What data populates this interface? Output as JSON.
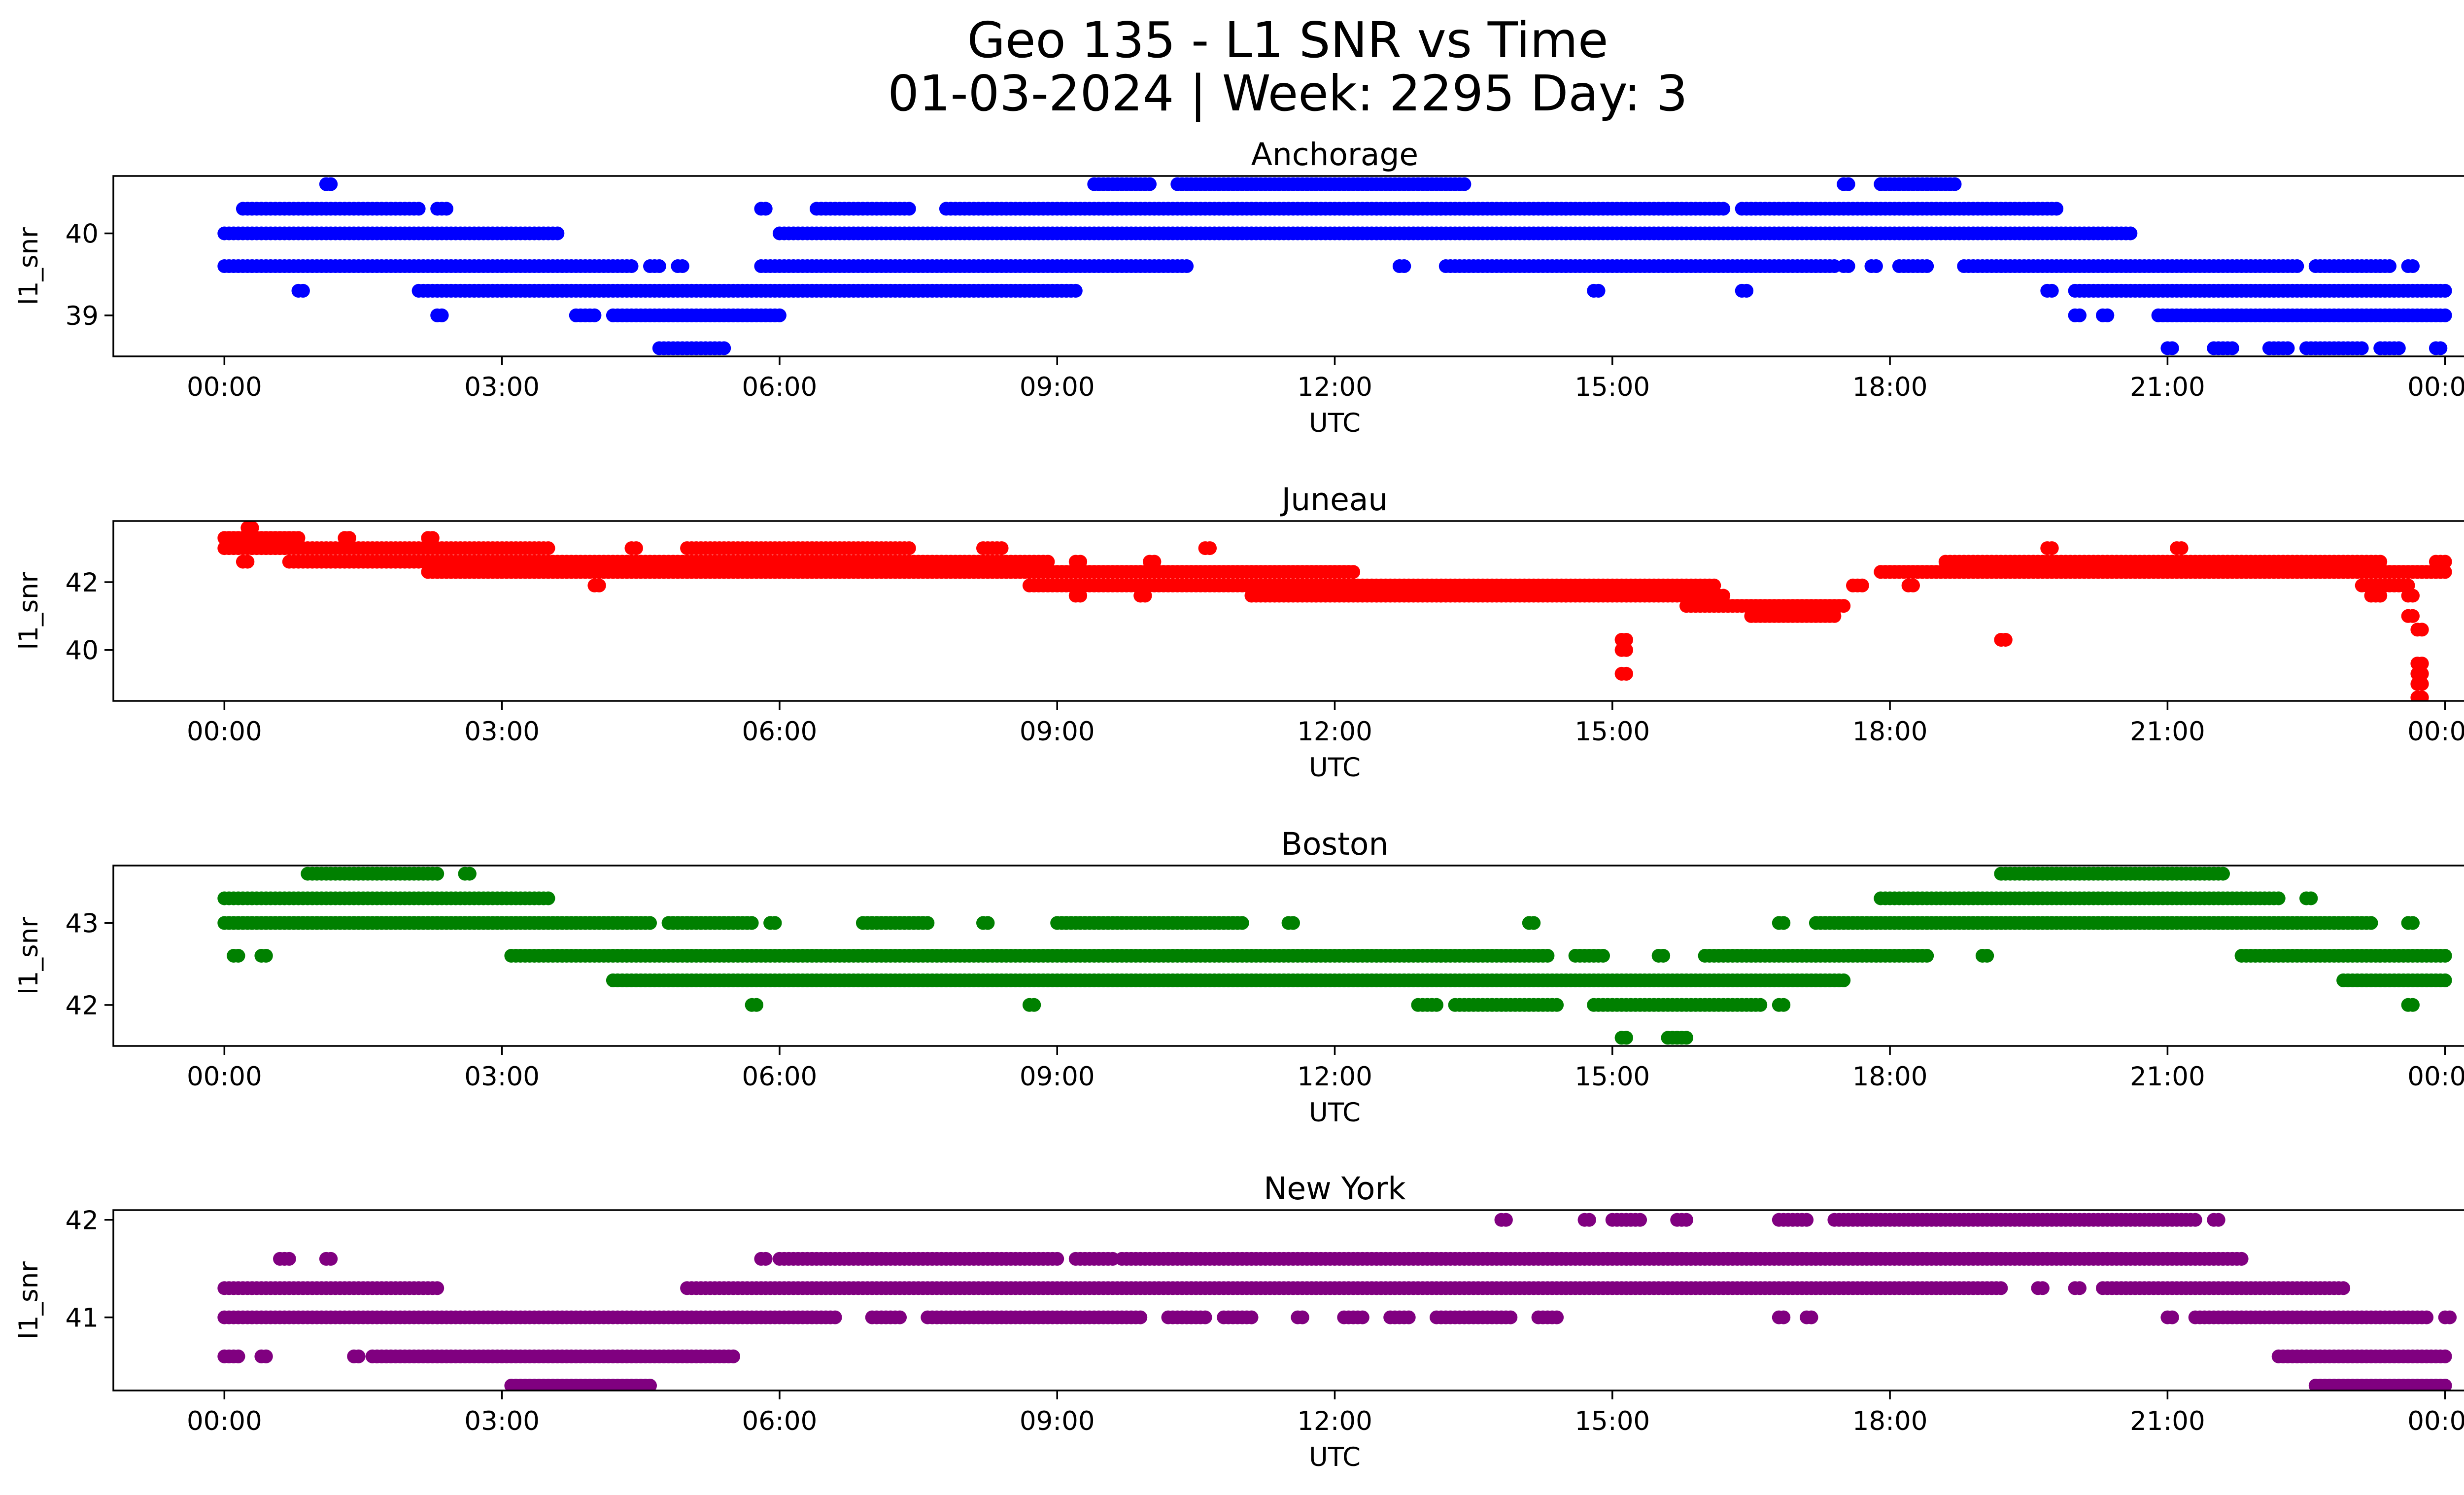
{
  "figure": {
    "title_line1": "Geo 135 - L1 SNR vs Time",
    "title_line2": "01-03-2024 | Week: 2295 Day: 3"
  },
  "chart_data": [
    {
      "type": "scatter",
      "title": "Anchorage",
      "xlabel": "UTC",
      "ylabel": "l1_snr",
      "color": "#0000ff",
      "x_unit": "hours_utc",
      "x_ticks": [
        "00:00",
        "03:00",
        "06:00",
        "09:00",
        "12:00",
        "15:00",
        "18:00",
        "21:00",
        "00:00"
      ],
      "xlim": [
        -1.2,
        25.2
      ],
      "ylim": [
        38.5,
        40.7
      ],
      "y_ticks": [
        39,
        40
      ],
      "bands": [
        {
          "y": 40.6,
          "segments": [
            [
              1.1,
              1.15
            ],
            [
              9.4,
              10.0
            ],
            [
              10.3,
              13.4
            ],
            [
              17.5,
              17.55
            ],
            [
              17.9,
              18.7
            ]
          ]
        },
        {
          "y": 40.3,
          "segments": [
            [
              0.2,
              2.1
            ],
            [
              2.3,
              2.4
            ],
            [
              5.8,
              5.85
            ],
            [
              6.4,
              7.4
            ],
            [
              7.8,
              7.85
            ],
            [
              7.9,
              16.2
            ],
            [
              16.4,
              19.8
            ]
          ]
        },
        {
          "y": 40.0,
          "segments": [
            [
              0.0,
              3.6
            ],
            [
              6.0,
              20.6
            ]
          ]
        },
        {
          "y": 39.6,
          "segments": [
            [
              0.0,
              4.4
            ],
            [
              4.6,
              4.7
            ],
            [
              4.9,
              4.95
            ],
            [
              5.8,
              10.4
            ],
            [
              12.7,
              12.75
            ],
            [
              13.2,
              17.4
            ],
            [
              17.5,
              17.55
            ],
            [
              17.8,
              17.85
            ],
            [
              18.1,
              18.4
            ],
            [
              18.8,
              22.4
            ],
            [
              22.6,
              23.4
            ],
            [
              23.6,
              23.65
            ]
          ]
        },
        {
          "y": 39.3,
          "segments": [
            [
              0.8,
              0.85
            ],
            [
              2.1,
              9.2
            ],
            [
              14.8,
              14.85
            ],
            [
              16.4,
              16.45
            ],
            [
              19.7,
              19.75
            ],
            [
              20.0,
              24.0
            ]
          ]
        },
        {
          "y": 39.0,
          "segments": [
            [
              2.3,
              2.35
            ],
            [
              3.8,
              4.0
            ],
            [
              4.2,
              6.0
            ],
            [
              20.0,
              20.05
            ],
            [
              20.3,
              20.35
            ],
            [
              20.9,
              24.0
            ]
          ]
        },
        {
          "y": 38.6,
          "segments": [
            [
              4.7,
              5.4
            ],
            [
              21.0,
              21.05
            ],
            [
              21.5,
              21.7
            ],
            [
              22.1,
              22.3
            ],
            [
              22.5,
              23.1
            ],
            [
              23.3,
              23.5
            ],
            [
              23.9,
              23.95
            ]
          ]
        }
      ]
    },
    {
      "type": "scatter",
      "title": "Juneau",
      "xlabel": "UTC",
      "ylabel": "l1_snr",
      "color": "#ff0000",
      "x_unit": "hours_utc",
      "x_ticks": [
        "00:00",
        "03:00",
        "06:00",
        "09:00",
        "12:00",
        "15:00",
        "18:00",
        "21:00",
        "00:00"
      ],
      "xlim": [
        -1.2,
        25.2
      ],
      "ylim": [
        38.5,
        43.8
      ],
      "y_ticks": [
        40,
        42
      ],
      "bands": [
        {
          "y": 43.6,
          "segments": [
            [
              0.25,
              0.3
            ]
          ]
        },
        {
          "y": 43.3,
          "segments": [
            [
              0.0,
              0.8
            ],
            [
              1.3,
              1.35
            ],
            [
              2.2,
              2.25
            ]
          ]
        },
        {
          "y": 43.0,
          "segments": [
            [
              0.0,
              3.5
            ],
            [
              4.4,
              4.45
            ],
            [
              5.0,
              7.4
            ],
            [
              8.2,
              8.4
            ],
            [
              10.6,
              10.65
            ],
            [
              19.7,
              19.75
            ],
            [
              21.1,
              21.15
            ]
          ]
        },
        {
          "y": 42.6,
          "segments": [
            [
              0.2,
              0.25
            ],
            [
              0.7,
              8.9
            ],
            [
              9.2,
              9.25
            ],
            [
              10.0,
              10.05
            ],
            [
              18.6,
              23.3
            ],
            [
              23.9,
              24.0
            ]
          ]
        },
        {
          "y": 42.3,
          "segments": [
            [
              2.2,
              12.2
            ],
            [
              17.9,
              24.0
            ]
          ]
        },
        {
          "y": 41.9,
          "segments": [
            [
              4.0,
              4.05
            ],
            [
              8.7,
              16.1
            ],
            [
              17.6,
              17.7
            ],
            [
              18.2,
              18.25
            ],
            [
              23.1,
              23.6
            ]
          ]
        },
        {
          "y": 41.6,
          "segments": [
            [
              9.2,
              9.25
            ],
            [
              9.9,
              9.95
            ],
            [
              11.1,
              16.2
            ],
            [
              23.2,
              23.3
            ],
            [
              23.6,
              23.65
            ]
          ]
        },
        {
          "y": 41.3,
          "segments": [
            [
              15.8,
              17.5
            ]
          ]
        },
        {
          "y": 41.0,
          "segments": [
            [
              16.5,
              17.4
            ],
            [
              23.6,
              23.65
            ]
          ]
        },
        {
          "y": 40.6,
          "segments": [
            [
              23.7,
              23.75
            ]
          ]
        },
        {
          "y": 40.3,
          "segments": [
            [
              15.1,
              15.15
            ],
            [
              19.2,
              19.25
            ]
          ]
        },
        {
          "y": 40.0,
          "segments": [
            [
              15.1,
              15.15
            ]
          ]
        },
        {
          "y": 39.6,
          "segments": [
            [
              23.7,
              23.75
            ]
          ]
        },
        {
          "y": 39.3,
          "segments": [
            [
              15.1,
              15.15
            ],
            [
              23.7,
              23.75
            ]
          ]
        },
        {
          "y": 39.0,
          "segments": [
            [
              23.7,
              23.75
            ]
          ]
        },
        {
          "y": 38.6,
          "segments": [
            [
              23.7,
              23.75
            ]
          ]
        }
      ]
    },
    {
      "type": "scatter",
      "title": "Boston",
      "xlabel": "UTC",
      "ylabel": "l1_snr",
      "color": "#008000",
      "x_unit": "hours_utc",
      "x_ticks": [
        "00:00",
        "03:00",
        "06:00",
        "09:00",
        "12:00",
        "15:00",
        "18:00",
        "21:00",
        "00:00"
      ],
      "xlim": [
        -1.2,
        25.2
      ],
      "ylim": [
        41.5,
        43.7
      ],
      "y_ticks": [
        42,
        43
      ],
      "bands": [
        {
          "y": 43.6,
          "segments": [
            [
              0.9,
              2.3
            ],
            [
              2.6,
              2.65
            ],
            [
              19.2,
              21.6
            ]
          ]
        },
        {
          "y": 43.3,
          "segments": [
            [
              0.0,
              3.5
            ],
            [
              17.9,
              22.2
            ],
            [
              22.5,
              22.55
            ]
          ]
        },
        {
          "y": 43.0,
          "segments": [
            [
              0.0,
              4.6
            ],
            [
              4.8,
              5.7
            ],
            [
              5.9,
              5.95
            ],
            [
              6.9,
              7.6
            ],
            [
              8.2,
              8.25
            ],
            [
              9.0,
              11.0
            ],
            [
              11.5,
              11.55
            ],
            [
              14.1,
              14.15
            ],
            [
              16.8,
              16.85
            ],
            [
              17.2,
              23.2
            ],
            [
              23.6,
              23.65
            ]
          ]
        },
        {
          "y": 42.6,
          "segments": [
            [
              0.1,
              0.15
            ],
            [
              0.4,
              0.45
            ],
            [
              3.1,
              14.3
            ],
            [
              14.6,
              14.9
            ],
            [
              15.5,
              15.55
            ],
            [
              16.0,
              18.4
            ],
            [
              19.0,
              19.05
            ],
            [
              21.8,
              24.0
            ]
          ]
        },
        {
          "y": 42.3,
          "segments": [
            [
              4.2,
              17.5
            ],
            [
              22.9,
              24.0
            ]
          ]
        },
        {
          "y": 42.0,
          "segments": [
            [
              5.7,
              5.75
            ],
            [
              8.7,
              8.75
            ],
            [
              12.9,
              13.1
            ],
            [
              13.3,
              14.4
            ],
            [
              14.8,
              16.6
            ],
            [
              16.8,
              16.85
            ],
            [
              23.6,
              23.65
            ]
          ]
        },
        {
          "y": 41.6,
          "segments": [
            [
              15.1,
              15.15
            ],
            [
              15.6,
              15.8
            ]
          ]
        }
      ]
    },
    {
      "type": "scatter",
      "title": "New York",
      "xlabel": "UTC",
      "ylabel": "l1_snr",
      "color": "#800080",
      "x_unit": "hours_utc",
      "x_ticks": [
        "00:00",
        "03:00",
        "06:00",
        "09:00",
        "12:00",
        "15:00",
        "18:00",
        "21:00",
        "00:00"
      ],
      "xlim": [
        -1.2,
        25.2
      ],
      "ylim": [
        40.25,
        42.1
      ],
      "y_ticks": [
        41,
        42
      ],
      "bands": [
        {
          "y": 42.0,
          "segments": [
            [
              13.8,
              13.85
            ],
            [
              14.7,
              14.75
            ],
            [
              15.0,
              15.3
            ],
            [
              15.7,
              15.8
            ],
            [
              16.8,
              17.1
            ],
            [
              17.4,
              21.3
            ],
            [
              21.5,
              21.55
            ]
          ]
        },
        {
          "y": 41.6,
          "segments": [
            [
              0.6,
              0.7
            ],
            [
              1.1,
              1.15
            ],
            [
              5.8,
              5.85
            ],
            [
              6.0,
              9.0
            ],
            [
              9.2,
              9.6
            ],
            [
              9.7,
              21.8
            ]
          ]
        },
        {
          "y": 41.3,
          "segments": [
            [
              0.0,
              2.3
            ],
            [
              5.0,
              19.2
            ],
            [
              19.6,
              19.65
            ],
            [
              20.0,
              20.05
            ],
            [
              20.3,
              22.9
            ]
          ]
        },
        {
          "y": 41.0,
          "segments": [
            [
              0.0,
              6.6
            ],
            [
              7.0,
              7.3
            ],
            [
              7.6,
              9.9
            ],
            [
              10.2,
              10.6
            ],
            [
              10.8,
              11.1
            ],
            [
              11.6,
              11.65
            ],
            [
              12.1,
              12.3
            ],
            [
              12.6,
              12.8
            ],
            [
              13.1,
              13.9
            ],
            [
              14.2,
              14.4
            ],
            [
              16.8,
              16.85
            ],
            [
              17.1,
              17.15
            ],
            [
              21.0,
              21.05
            ],
            [
              21.3,
              23.8
            ],
            [
              24.0,
              24.05
            ]
          ]
        },
        {
          "y": 40.6,
          "segments": [
            [
              0.0,
              0.15
            ],
            [
              0.4,
              0.45
            ],
            [
              1.4,
              1.45
            ],
            [
              1.6,
              5.5
            ],
            [
              22.2,
              24.0
            ]
          ]
        },
        {
          "y": 40.3,
          "segments": [
            [
              3.1,
              4.6
            ],
            [
              22.6,
              24.0
            ]
          ]
        }
      ]
    }
  ]
}
